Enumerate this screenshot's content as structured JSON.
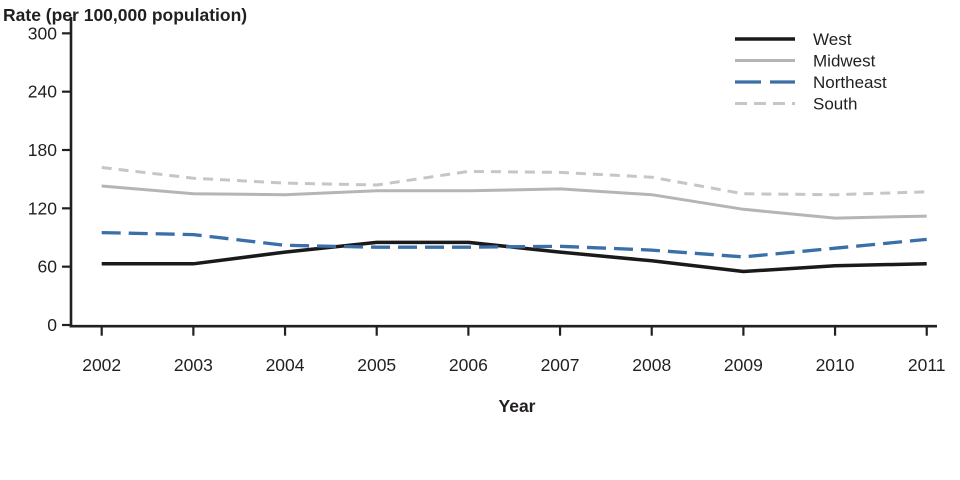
{
  "chart_data": {
    "type": "line",
    "title": "Rate (per 100,000 population)",
    "xlabel": "Year",
    "ylabel": "Rate (per 100,000 population)",
    "x": [
      2002,
      2003,
      2004,
      2005,
      2006,
      2007,
      2008,
      2009,
      2010,
      2011
    ],
    "y_ticks": [
      0,
      60,
      120,
      180,
      240,
      300
    ],
    "ylim": [
      0,
      300
    ],
    "grid": false,
    "legend_position": "top-right",
    "axis_color": "#231f20",
    "series": [
      {
        "name": "West",
        "color": "#1a1a1a",
        "dash": "solid",
        "width": 3.5,
        "values": [
          63,
          63,
          75,
          85,
          85,
          75,
          66,
          55,
          61,
          63
        ]
      },
      {
        "name": "Midwest",
        "color": "#b5b5b5",
        "dash": "solid",
        "width": 3,
        "values": [
          143,
          135,
          134,
          138,
          138,
          140,
          134,
          119,
          110,
          112
        ]
      },
      {
        "name": "Northeast",
        "color": "#3a6fa8",
        "dash": "long-dash",
        "width": 3.3,
        "values": [
          95,
          93,
          82,
          80,
          80,
          81,
          77,
          70,
          79,
          88
        ]
      },
      {
        "name": "South",
        "color": "#c6c6c6",
        "dash": "dash",
        "width": 3,
        "values": [
          162,
          151,
          146,
          144,
          158,
          157,
          152,
          135,
          134,
          137
        ]
      }
    ]
  }
}
